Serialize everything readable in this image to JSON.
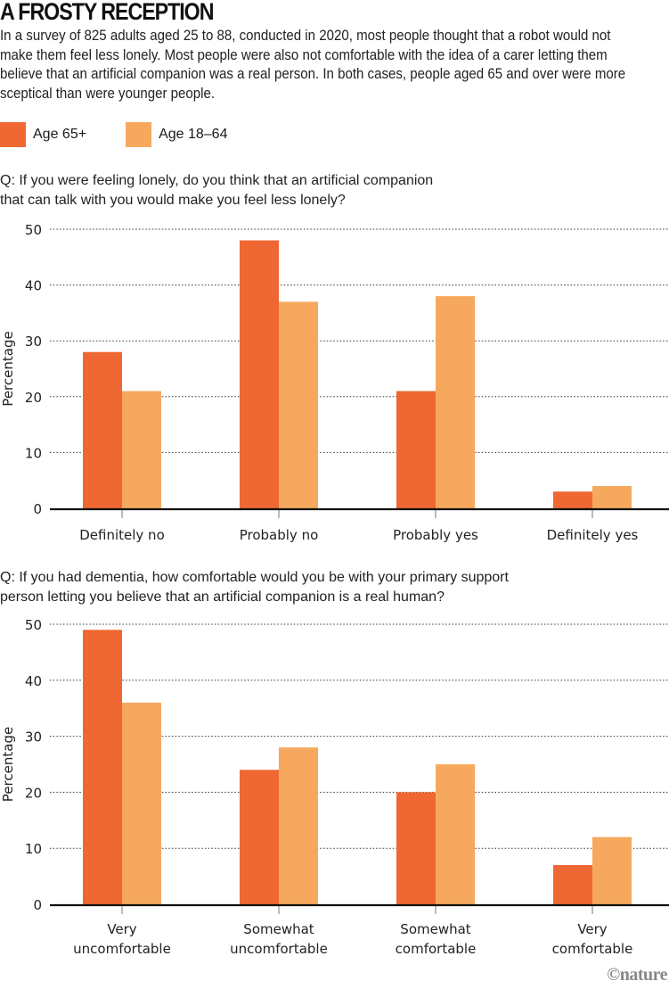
{
  "title": "A FROSTY RECEPTION",
  "intro": "In a survey of 825 adults aged 25 to 88, conducted in 2020, most people thought that a robot would not make them feel less lonely. Most people were also not comfortable with the idea of a carer letting them believe that an artificial companion was a real person. In both cases, people aged 65 and over were more sceptical than were younger people.",
  "legend": [
    {
      "label": "Age 65+",
      "color": "#ef6733"
    },
    {
      "label": "Age 18–64",
      "color": "#f6a95e"
    }
  ],
  "credit": "©nature",
  "chart_data": [
    {
      "type": "bar",
      "title": "Q: If you were feeling lonely, do you think that an artificial companion that can talk with you would make you feel less lonely?",
      "title_lines": [
        "Q: If you were feeling lonely, do you think that an artificial companion",
        "that can talk with you would make you feel less lonely?"
      ],
      "xlabel": "",
      "ylabel": "Percentage",
      "ylim": [
        0,
        50
      ],
      "yticks": [
        0,
        10,
        20,
        30,
        40,
        50
      ],
      "grid": true,
      "categories": [
        [
          "Definitely no"
        ],
        [
          "Probably no"
        ],
        [
          "Probably yes"
        ],
        [
          "Definitely yes"
        ]
      ],
      "series": [
        {
          "name": "Age 65+",
          "color": "#ef6733",
          "values": [
            28,
            48,
            21,
            3
          ]
        },
        {
          "name": "Age 18–64",
          "color": "#f6a95e",
          "values": [
            21,
            37,
            38,
            4
          ]
        }
      ]
    },
    {
      "type": "bar",
      "title": "Q: If you had dementia, how comfortable would you be with your primary support person letting you believe that an artificial companion is a real human?",
      "title_lines": [
        "Q: If you had dementia, how comfortable would you be with your primary support",
        "person letting you believe that an artificial companion is a real human?"
      ],
      "xlabel": "",
      "ylabel": "Percentage",
      "ylim": [
        0,
        50
      ],
      "yticks": [
        0,
        10,
        20,
        30,
        40,
        50
      ],
      "grid": true,
      "categories": [
        [
          "Very",
          "uncomfortable"
        ],
        [
          "Somewhat",
          "uncomfortable"
        ],
        [
          "Somewhat",
          "comfortable"
        ],
        [
          "Very",
          "comfortable"
        ]
      ],
      "series": [
        {
          "name": "Age 65+",
          "color": "#ef6733",
          "values": [
            49,
            24,
            20,
            7
          ]
        },
        {
          "name": "Age 18–64",
          "color": "#f6a95e",
          "values": [
            36,
            28,
            25,
            12
          ]
        }
      ]
    }
  ]
}
